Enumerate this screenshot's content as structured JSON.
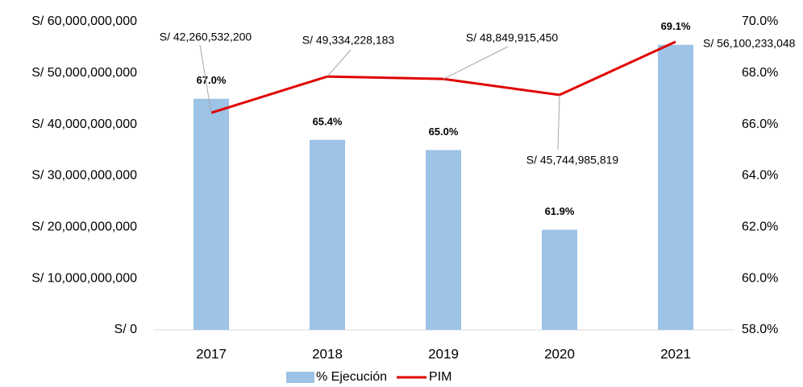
{
  "chart_data": {
    "type": "bar-line",
    "categories": [
      "2017",
      "2018",
      "2019",
      "2020",
      "2021"
    ],
    "series": [
      {
        "name": "% Ejecución",
        "type": "bar",
        "axis": "y2",
        "color": "#9dc3e6",
        "values": [
          67.0,
          65.4,
          65.0,
          61.9,
          69.1
        ],
        "value_labels": [
          "67.0%",
          "65.4%",
          "65.0%",
          "61.9%",
          "69.1%"
        ]
      },
      {
        "name": "PIM",
        "type": "line",
        "axis": "y",
        "color": "#e00000",
        "values": [
          42260532200,
          49334228183,
          48849915450,
          45744985819,
          56100233048
        ],
        "value_labels": [
          "S/ 42,260,532,200",
          "S/ 49,334,228,183",
          "S/ 48,849,915,450",
          "S/ 45,744,985,819",
          "S/ 56,100,233,048"
        ]
      }
    ],
    "ylim": [
      0,
      60000000000
    ],
    "yticks": [
      {
        "value": 0,
        "label": "S/ 0"
      },
      {
        "value": 10000000000,
        "label": "S/ 10,000,000,000"
      },
      {
        "value": 20000000000,
        "label": "S/ 20,000,000,000"
      },
      {
        "value": 30000000000,
        "label": "S/ 30,000,000,000"
      },
      {
        "value": 40000000000,
        "label": "S/ 40,000,000,000"
      },
      {
        "value": 50000000000,
        "label": "S/ 50,000,000,000"
      },
      {
        "value": 60000000000,
        "label": "S/ 60,000,000,000"
      }
    ],
    "y2lim": [
      58,
      70
    ],
    "y2ticks": [
      {
        "value": 58,
        "label": "58.0%"
      },
      {
        "value": 60,
        "label": "60.0%"
      },
      {
        "value": 62,
        "label": "62.0%"
      },
      {
        "value": 64,
        "label": "64.0%"
      },
      {
        "value": 66,
        "label": "66.0%"
      },
      {
        "value": 68,
        "label": "68.0%"
      },
      {
        "value": 70,
        "label": "70.0%"
      }
    ],
    "grid": false,
    "legend": "bottom"
  }
}
